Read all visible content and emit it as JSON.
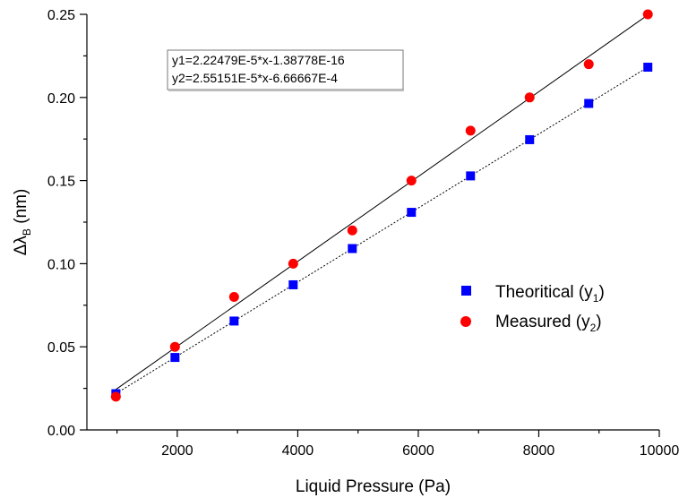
{
  "chart_data": {
    "type": "scatter",
    "title": "",
    "xlabel": "Liquid Pressure (Pa)",
    "ylabel": "Δλ_B (nm)",
    "ylabel_main": "Δλ",
    "ylabel_sub": "B",
    "ylabel_unit": " (nm)",
    "xlim": [
      500,
      10000
    ],
    "ylim": [
      0,
      0.25
    ],
    "xticks": [
      2000,
      4000,
      6000,
      8000,
      10000
    ],
    "xtick_labels": [
      "2000",
      "4000",
      "6000",
      "8000",
      "10000"
    ],
    "yticks": [
      0.0,
      0.05,
      0.1,
      0.15,
      0.2,
      0.25
    ],
    "ytick_labels": [
      "0.00",
      "0.05",
      "0.10",
      "0.15",
      "0.20",
      "0.25"
    ],
    "grid": false,
    "legend_position": "right",
    "series": [
      {
        "name": "Theoritical (y1)",
        "legend_main": "Theoritical (y",
        "legend_sub": "1",
        "legend_end": ")",
        "marker": "square",
        "color": "#0000ff",
        "x": [
          981,
          1962,
          2943,
          3924,
          4905,
          5886,
          6867,
          7848,
          8829,
          9810
        ],
        "y": [
          0.0218,
          0.0436,
          0.0655,
          0.0873,
          0.1091,
          0.1309,
          0.1528,
          0.1746,
          0.1964,
          0.2182
        ],
        "fit_line": {
          "slope": 2.22479e-05,
          "intercept": -1.38778e-16,
          "style": "dotted",
          "color": "#000000"
        }
      },
      {
        "name": "Measured (y2)",
        "legend_main": "Measured (y",
        "legend_sub": "2",
        "legend_end": ")",
        "marker": "circle",
        "color": "#ff0000",
        "x": [
          981,
          1962,
          2943,
          3924,
          4905,
          5886,
          6867,
          7848,
          8829,
          9810
        ],
        "y": [
          0.02,
          0.05,
          0.08,
          0.1,
          0.12,
          0.15,
          0.18,
          0.2,
          0.22,
          0.25
        ],
        "fit_line": {
          "slope": 2.55151e-05,
          "intercept": -0.000666667,
          "style": "solid",
          "color": "#000000"
        }
      }
    ],
    "annotation": {
      "line1": "y1=2.22479E-5*x-1.38778E-16",
      "line2": "y2=2.55151E-5*x-6.66667E-4"
    }
  }
}
